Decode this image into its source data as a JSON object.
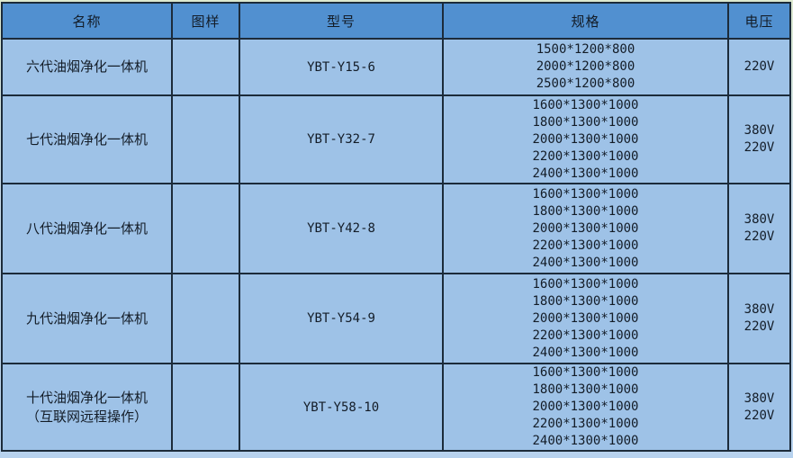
{
  "table": {
    "columns": [
      {
        "label": "名称"
      },
      {
        "label": "图样"
      },
      {
        "label": "型号"
      },
      {
        "label": "规格"
      },
      {
        "label": "电压"
      }
    ],
    "rows": [
      {
        "name_lines": [
          "六代油烟净化一体机"
        ],
        "image": "",
        "model": "YBT-Y15-6",
        "specs": [
          "1500*1200*800",
          "2000*1200*800",
          "2500*1200*800"
        ],
        "voltage": [
          "220V"
        ]
      },
      {
        "name_lines": [
          "七代油烟净化一体机"
        ],
        "image": "",
        "model": "YBT-Y32-7",
        "specs": [
          "1600*1300*1000",
          "1800*1300*1000",
          "2000*1300*1000",
          "2200*1300*1000",
          "2400*1300*1000"
        ],
        "voltage": [
          "380V",
          "220V"
        ]
      },
      {
        "name_lines": [
          "八代油烟净化一体机"
        ],
        "image": "",
        "model": "YBT-Y42-8",
        "specs": [
          "1600*1300*1000",
          "1800*1300*1000",
          "2000*1300*1000",
          "2200*1300*1000",
          "2400*1300*1000"
        ],
        "voltage": [
          "380V",
          "220V"
        ]
      },
      {
        "name_lines": [
          "九代油烟净化一体机"
        ],
        "image": "",
        "model": "YBT-Y54-9",
        "specs": [
          "1600*1300*1000",
          "1800*1300*1000",
          "2000*1300*1000",
          "2200*1300*1000",
          "2400*1300*1000"
        ],
        "voltage": [
          "380V",
          "220V"
        ]
      },
      {
        "name_lines": [
          "十代油烟净化一体机",
          "（互联网远程操作）"
        ],
        "image": "",
        "model": "YBT-Y58-10",
        "specs": [
          "1600*1300*1000",
          "1800*1300*1000",
          "2000*1300*1000",
          "2200*1300*1000",
          "2400*1300*1000"
        ],
        "voltage": [
          "380V",
          "220V"
        ]
      }
    ],
    "colors": {
      "header_bg": "#5190d0",
      "row_bg": "#9ec2e7",
      "border": "#1c2b3a",
      "text": "#131c27"
    }
  }
}
